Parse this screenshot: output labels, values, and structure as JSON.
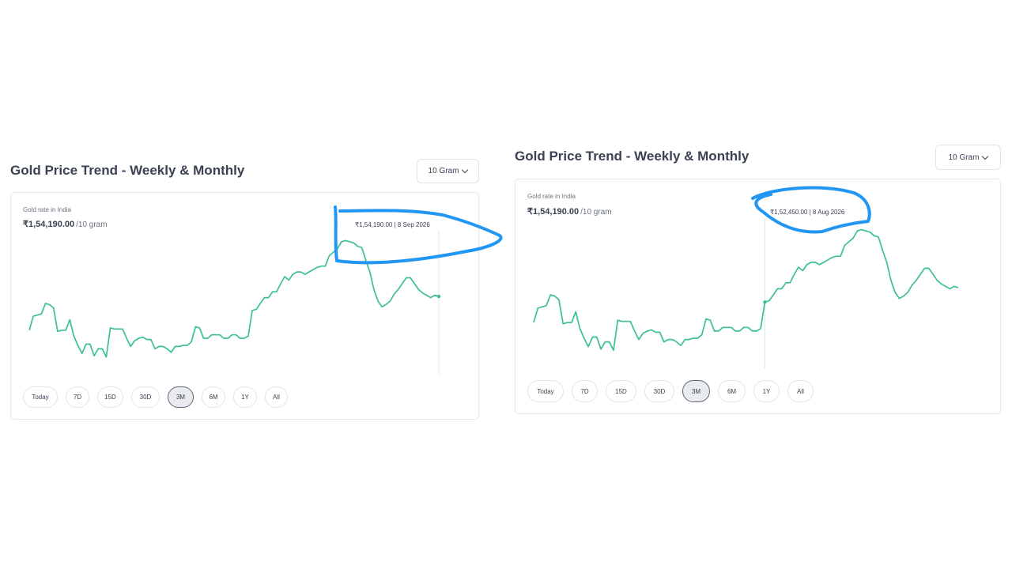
{
  "panels": [
    {
      "title": "Gold Price Trend - Weekly & Monthly",
      "unit_select": "10 Gram",
      "rate_label": "Gold rate in India",
      "price": "₹1,54,190.00",
      "price_unit": "/10 gram",
      "tooltip": "₹1,54,190.00 | 8 Sep 2026",
      "tabs": [
        "Today",
        "7D",
        "15D",
        "30D",
        "3M",
        "6M",
        "1Y",
        "All"
      ],
      "active_tab": "3M"
    },
    {
      "title": "Gold Price Trend - Weekly & Monthly",
      "unit_select": "10 Gram",
      "rate_label": "Gold rate in India",
      "price": "₹1,54,190.00",
      "price_unit": "/10 gram",
      "tooltip": "₹1,52,450.00 | 8 Aug 2026",
      "tabs": [
        "Today",
        "7D",
        "15D",
        "30D",
        "3M",
        "6M",
        "1Y",
        "All"
      ],
      "active_tab": "3M"
    }
  ],
  "colors": {
    "line": "#3bbf9a",
    "annotation": "#2196f3"
  },
  "chart_data": {
    "type": "line",
    "y": [
      100,
      112,
      113,
      114,
      123,
      122,
      119,
      99,
      100,
      100,
      109,
      95,
      87,
      80,
      88,
      88,
      78,
      84,
      84,
      77,
      102,
      101,
      101,
      101,
      93,
      86,
      91,
      93,
      94,
      92,
      92,
      84,
      86,
      86,
      84,
      81,
      86,
      86,
      87,
      87,
      90,
      103,
      102,
      93,
      93,
      96,
      96,
      96,
      93,
      93,
      96,
      96,
      93,
      93,
      95,
      117,
      118,
      123,
      128,
      128,
      133,
      133,
      140,
      146,
      143,
      148,
      150,
      150,
      148,
      150,
      152,
      154,
      155,
      155,
      164,
      167,
      170,
      176,
      177,
      176,
      175,
      172,
      171,
      160,
      150,
      135,
      125,
      120,
      122,
      125,
      131,
      135,
      140,
      145,
      145,
      140,
      135,
      132,
      130,
      128,
      130,
      129
    ]
  }
}
